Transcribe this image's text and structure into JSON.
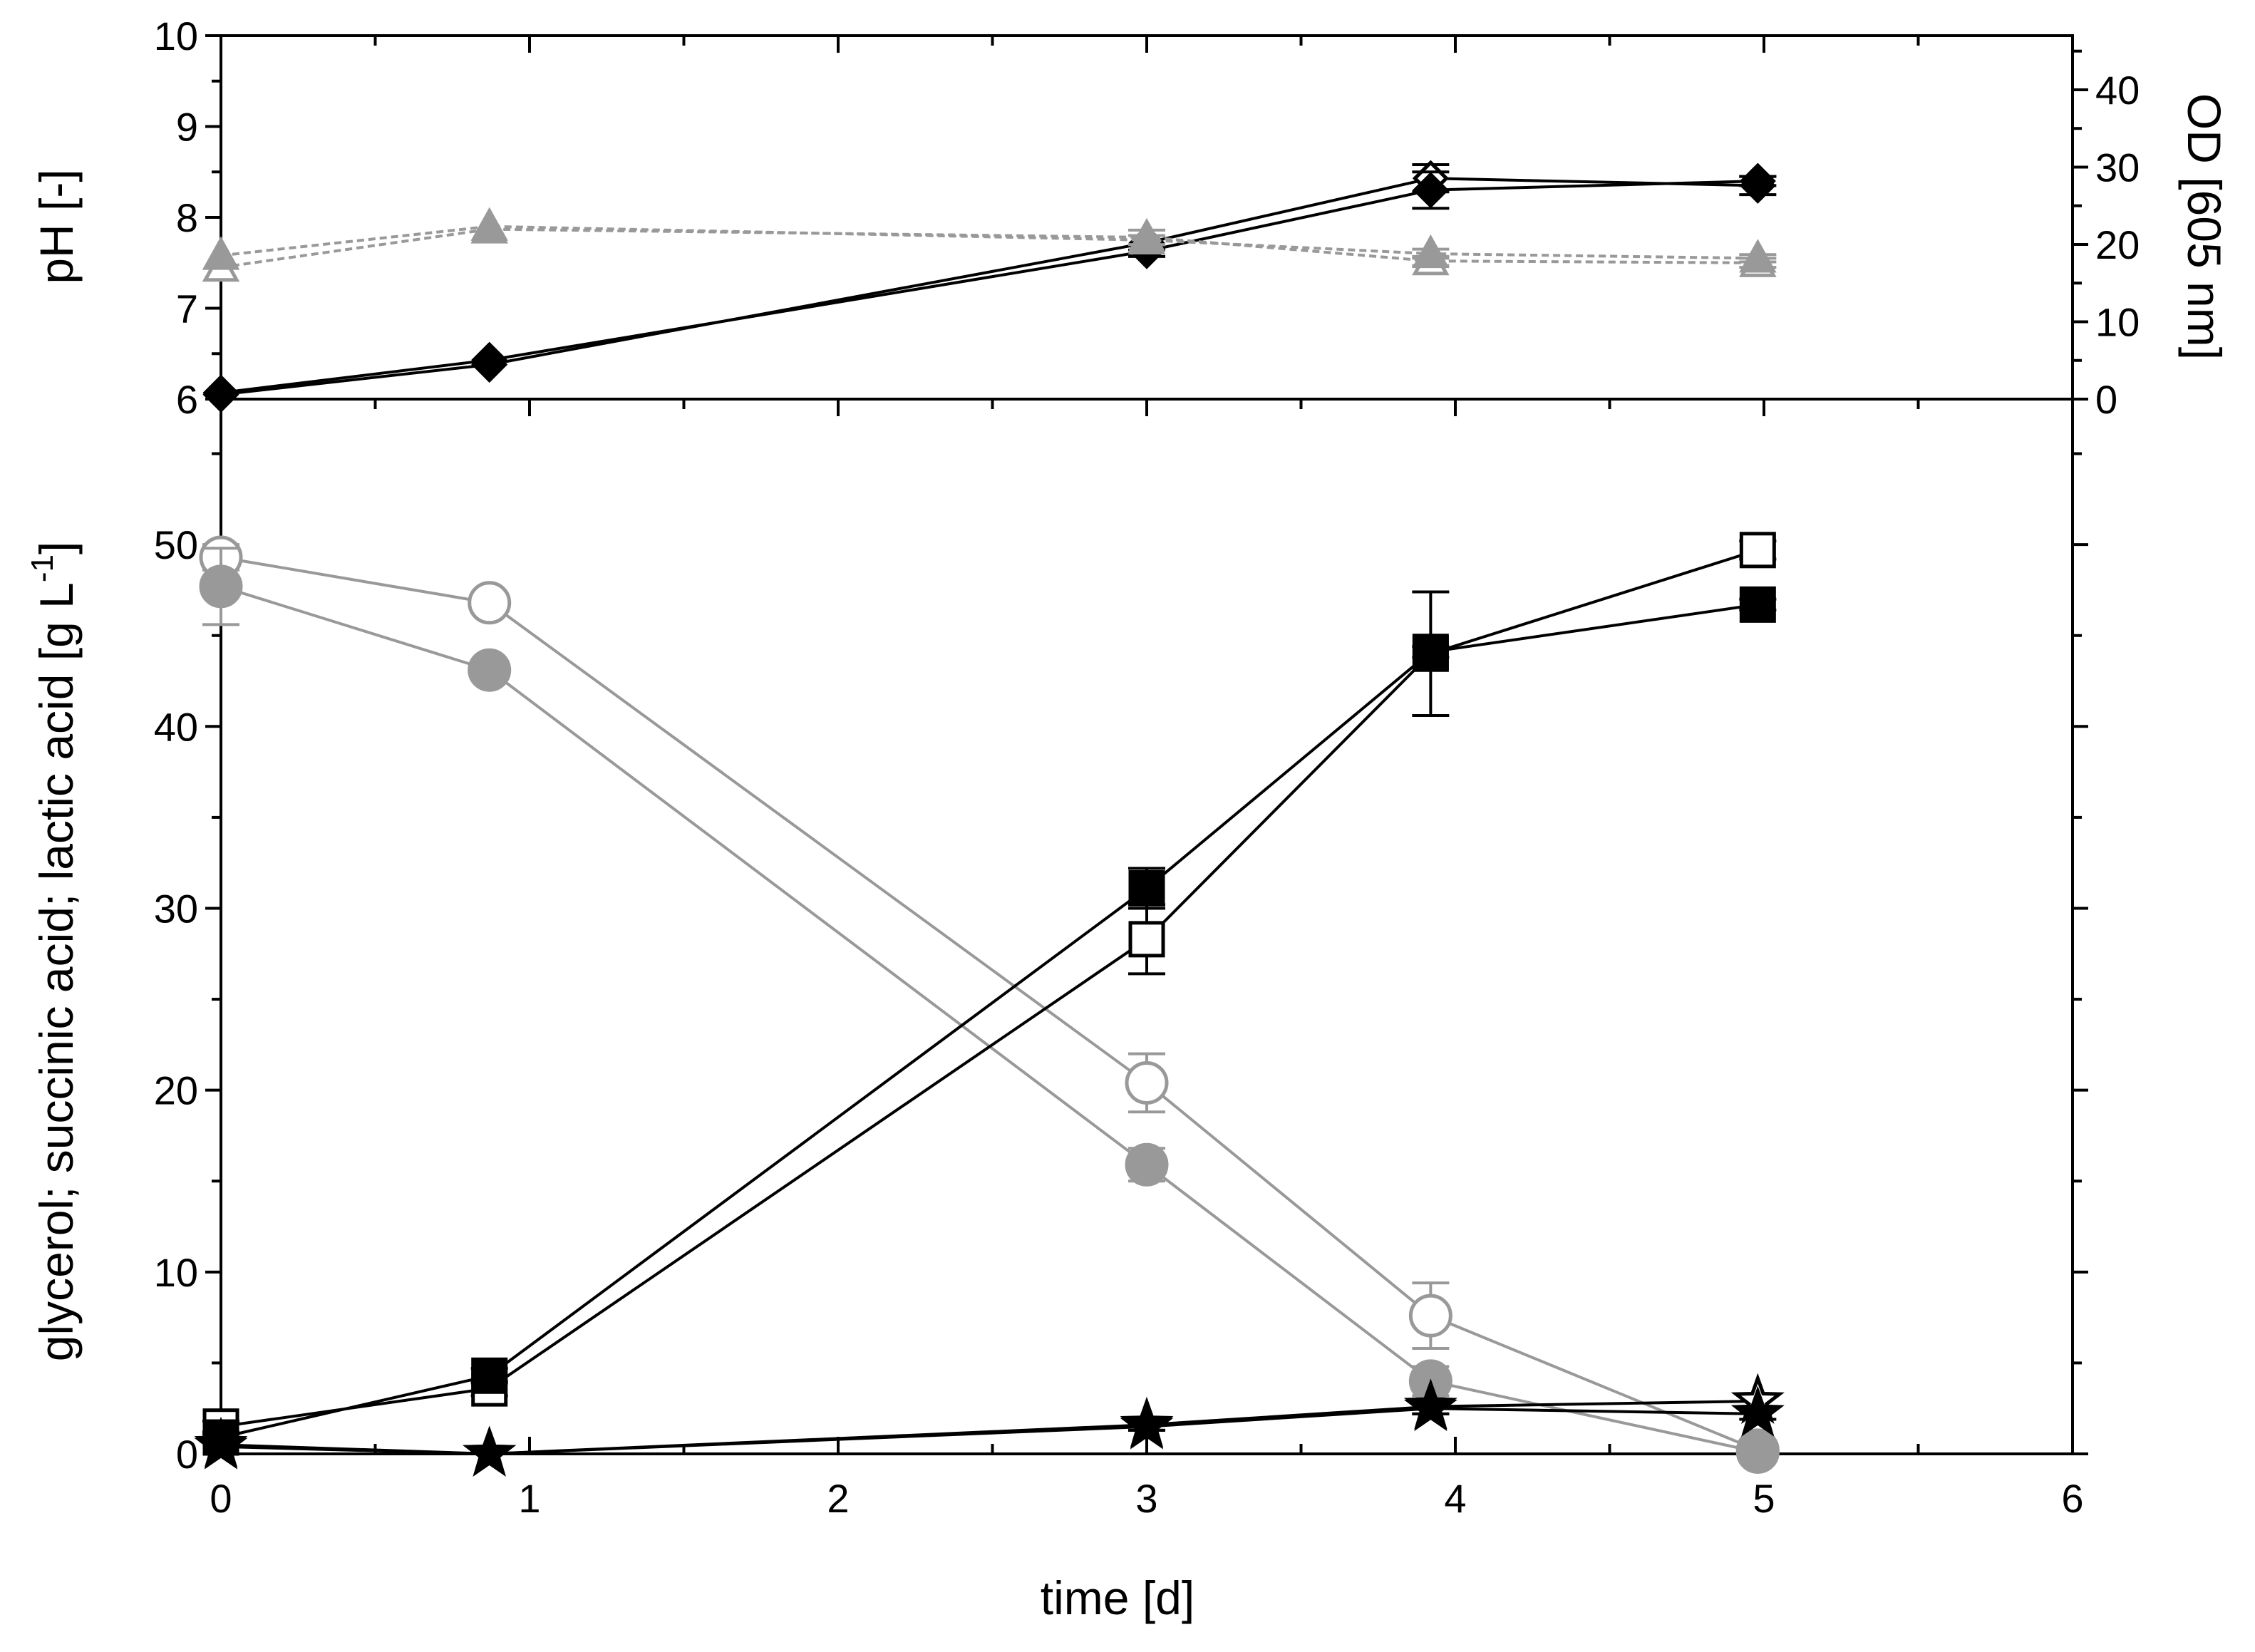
{
  "chart_data": [
    {
      "type": "line",
      "panel": "top",
      "xlabel": "",
      "ylabel": "pH [-]",
      "y2label": "OD [605 nm]",
      "xlim": [
        0,
        6
      ],
      "ylim": [
        6,
        10
      ],
      "y2lim": [
        0,
        47
      ],
      "xticks": [
        "0",
        "1",
        "2",
        "3",
        "4",
        "5",
        "6"
      ],
      "yticks": [
        "6",
        "7",
        "8",
        "9",
        "10"
      ],
      "y2ticks": [
        "0",
        "10",
        "20",
        "30",
        "40"
      ],
      "grid": false,
      "series": [
        {
          "marker": "diamond",
          "filled": false,
          "color": "#000000",
          "dash": "solid",
          "axis": "left",
          "x": [
            0,
            0.87,
            3,
            3.92,
            4.98
          ],
          "y": [
            6.05,
            6.38,
            7.72,
            8.43,
            8.35
          ],
          "err": [
            0,
            0,
            0.08,
            0.15,
            0.1
          ]
        },
        {
          "marker": "diamond",
          "filled": true,
          "color": "#000000",
          "dash": "solid",
          "axis": "left",
          "x": [
            0,
            0.87,
            3,
            3.92,
            4.98
          ],
          "y": [
            6.07,
            6.43,
            7.63,
            8.3,
            8.4
          ],
          "err": [
            0,
            0,
            0.06,
            0.2,
            0.05
          ]
        },
        {
          "marker": "triangle",
          "filled": false,
          "color": "#999999",
          "dash": "dashed",
          "axis": "left",
          "x": [
            0,
            0.87,
            3,
            3.92,
            4.98
          ],
          "y": [
            7.45,
            7.87,
            7.78,
            7.52,
            7.5
          ],
          "err": [
            0,
            0,
            0.08,
            0.05,
            0.05
          ]
        },
        {
          "marker": "triangle",
          "filled": true,
          "color": "#999999",
          "dash": "dashed",
          "axis": "left",
          "x": [
            0,
            0.87,
            3,
            3.92,
            4.98
          ],
          "y": [
            7.58,
            7.9,
            7.75,
            7.6,
            7.55
          ],
          "err": [
            0,
            0,
            0.05,
            0.05,
            0.04
          ]
        }
      ]
    },
    {
      "type": "line",
      "panel": "bottom",
      "xlabel": "time [d]",
      "ylabel": "glycerol; succinic acid; lactic acid [g L",
      "ylabel_sup": "-1",
      "ylabel_end": "]",
      "xlim": [
        0,
        6
      ],
      "ylim": [
        0,
        58
      ],
      "xticks": [
        "0",
        "1",
        "2",
        "3",
        "4",
        "5",
        "6"
      ],
      "yticks": [
        "0",
        "10",
        "20",
        "30",
        "40",
        "50"
      ],
      "grid": false,
      "series": [
        {
          "marker": "circle",
          "filled": false,
          "color": "#999999",
          "x": [
            0,
            0.87,
            3,
            3.92,
            4.98
          ],
          "y": [
            49.3,
            46.8,
            20.4,
            7.6,
            0.2
          ],
          "err": [
            0.7,
            0.5,
            1.6,
            1.8,
            0.2
          ]
        },
        {
          "marker": "circle",
          "filled": true,
          "color": "#999999",
          "x": [
            0,
            0.87,
            3,
            3.92,
            4.98
          ],
          "y": [
            47.7,
            43.1,
            15.9,
            4.0,
            0.1
          ],
          "err": [
            2.1,
            0.4,
            0.9,
            0.8,
            0.1
          ]
        },
        {
          "marker": "square",
          "filled": false,
          "color": "#000000",
          "x": [
            0,
            0.87,
            3,
            3.92,
            4.98
          ],
          "y": [
            1.5,
            3.6,
            28.3,
            44.0,
            49.7
          ],
          "err": [
            0.3,
            0.4,
            1.9,
            3.4,
            0.5
          ]
        },
        {
          "marker": "square",
          "filled": true,
          "color": "#000000",
          "x": [
            0,
            0.87,
            3,
            3.92,
            4.98
          ],
          "y": [
            0.9,
            4.3,
            31.1,
            44.1,
            46.7
          ],
          "err": [
            0.2,
            0.4,
            1.1,
            0.3,
            0.3
          ]
        },
        {
          "marker": "star",
          "filled": false,
          "color": "#000000",
          "x": [
            0,
            0.87,
            3,
            3.92,
            4.98
          ],
          "y": [
            0.5,
            0.0,
            1.6,
            2.6,
            2.9
          ],
          "err": [
            0,
            0,
            0.3,
            0.4,
            0.3
          ]
        },
        {
          "marker": "star",
          "filled": true,
          "color": "#000000",
          "x": [
            0,
            0.87,
            3,
            3.92,
            4.98
          ],
          "y": [
            0.4,
            0.0,
            1.5,
            2.5,
            2.2
          ],
          "err": [
            0,
            0,
            0.2,
            0.3,
            0.3
          ]
        }
      ]
    }
  ]
}
